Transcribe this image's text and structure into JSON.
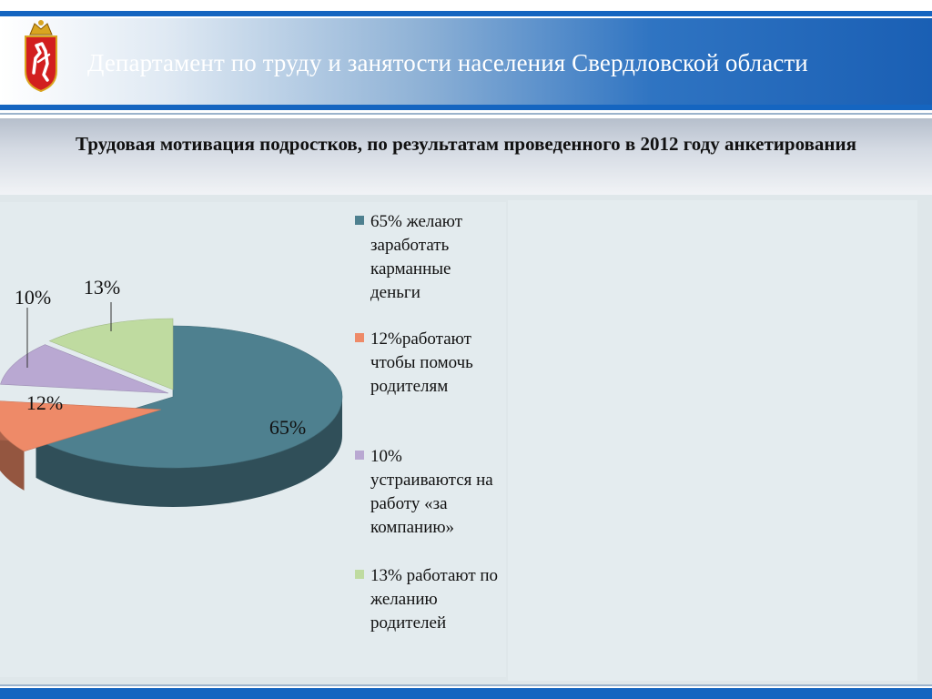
{
  "header": {
    "title": "Департамент по труду и занятости населения  Свердловской области",
    "emblem_icon": "coat-of-arms-icon",
    "bar_color": "#1565c0"
  },
  "chart_data": {
    "type": "pie",
    "title": "Трудовая мотивация подростков, по результатам проведенного в 2012 году анкетирования",
    "slices": [
      {
        "value": 65,
        "label": "65%",
        "legend": "65% желают заработать карманные деньги",
        "color": "#4e808f"
      },
      {
        "value": 12,
        "label": "12%",
        "legend": "12%работают чтобы помочь родителям",
        "color": "#ee8a68"
      },
      {
        "value": 10,
        "label": "10%",
        "legend": "10% устраиваются на работу «за компанию»",
        "color": "#b9a8d2"
      },
      {
        "value": 13,
        "label": "13%",
        "legend": "13% работают по желанию родителей",
        "color": "#bfdba0"
      }
    ],
    "legend_position": "right",
    "style": "3d-exploded"
  }
}
